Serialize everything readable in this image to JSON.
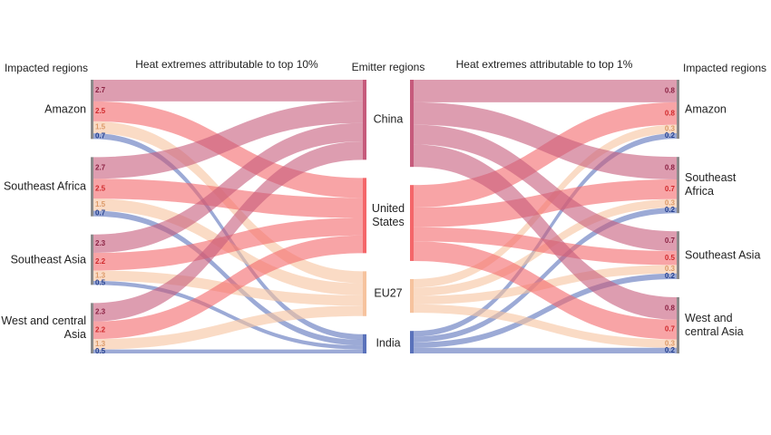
{
  "chart_data": {
    "type": "sankey",
    "emitters_title": "Emitter regions",
    "emitters": [
      "China",
      "United States",
      "EU27",
      "India"
    ],
    "colors": [
      "#c65b7c",
      "#f4676a",
      "#f6c39e",
      "#5a72bb"
    ],
    "label_colors": [
      "#8c2344",
      "#d12b2e",
      "#dc9a68",
      "#26408f"
    ],
    "panels": [
      {
        "title": "Heat extremes attributable to top 10%",
        "regions_title": "Impacted regions",
        "side": "left",
        "regions": [
          {
            "name": "Amazon",
            "values": [
              2.7,
              2.5,
              1.5,
              0.7
            ]
          },
          {
            "name": "Southeast Africa",
            "values": [
              2.7,
              2.5,
              1.5,
              0.7
            ]
          },
          {
            "name": "Southeast Asia",
            "values": [
              2.3,
              2.2,
              1.3,
              0.5
            ]
          },
          {
            "name": "West and central Asia",
            "values": [
              2.3,
              2.2,
              1.3,
              0.5
            ]
          }
        ]
      },
      {
        "title": "Heat extremes attributable to top 1%",
        "regions_title": "Impacted regions",
        "side": "right",
        "regions": [
          {
            "name": "Amazon",
            "values": [
              0.8,
              0.8,
              0.3,
              0.2
            ]
          },
          {
            "name": "Southeast Africa",
            "values": [
              0.8,
              0.7,
              0.3,
              0.2
            ]
          },
          {
            "name": "Southeast Asia",
            "values": [
              0.7,
              0.5,
              0.3,
              0.2
            ]
          },
          {
            "name": "West and central Asia",
            "values": [
              0.8,
              0.7,
              0.3,
              0.2
            ]
          }
        ]
      }
    ]
  }
}
